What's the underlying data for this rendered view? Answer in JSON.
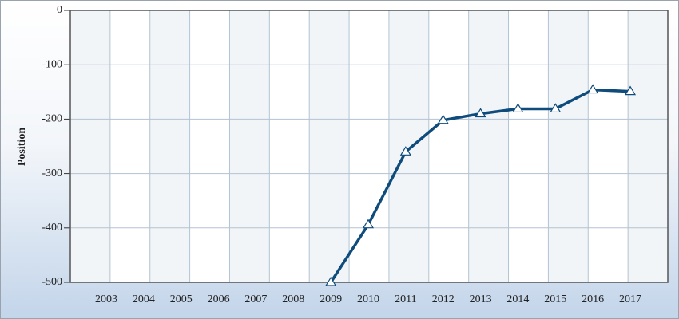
{
  "chart_data": {
    "type": "line",
    "y_label": "Position",
    "categories": [
      "2003",
      "2004",
      "2005",
      "2006",
      "2007",
      "2008",
      "2009",
      "2010",
      "2011",
      "2012",
      "2013",
      "2014",
      "2015",
      "2016",
      "2017"
    ],
    "series": [
      {
        "name": "Position",
        "color": "#0f4c7c",
        "values": [
          null,
          null,
          null,
          null,
          null,
          null,
          -500,
          -394,
          -260,
          -202,
          -190,
          -181,
          -181,
          -146,
          -149
        ]
      }
    ],
    "ylim": [
      -500,
      0
    ],
    "yticks": [
      -500,
      -400,
      -300,
      -200,
      -100,
      0
    ],
    "grid": true
  }
}
